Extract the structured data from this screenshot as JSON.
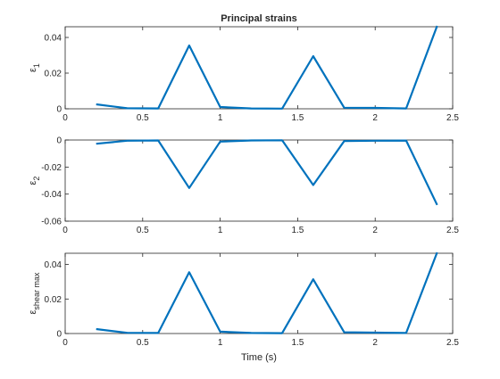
{
  "chart_data": [
    {
      "type": "line",
      "title": "Principal strains",
      "ylabel": "ε1",
      "ylabel_main": "ε",
      "ylabel_sub": "1",
      "xlabel": "",
      "xlim": [
        0,
        2.5
      ],
      "ylim": [
        0,
        0.046
      ],
      "xticks": [
        0,
        0.5,
        1,
        1.5,
        2,
        2.5
      ],
      "xtick_labels": [
        "0",
        "0.5",
        "1",
        "1.5",
        "2",
        "2.5"
      ],
      "yticks": [
        0,
        0.02,
        0.04
      ],
      "ytick_labels": [
        "0",
        "0.02",
        "0.04"
      ],
      "grid": false,
      "color": "#0072BD",
      "series": [
        {
          "x": [
            0.2,
            0.4,
            0.6,
            0.8,
            1.0,
            1.2,
            1.4,
            1.6,
            1.8,
            2.0,
            2.2,
            2.4
          ],
          "values": [
            0.0025,
            0.0003,
            0.0002,
            0.0355,
            0.001,
            0.0002,
            0.0001,
            0.0295,
            0.0006,
            0.0005,
            0.0002,
            0.0465
          ]
        }
      ]
    },
    {
      "type": "line",
      "title": "",
      "ylabel": "ε2",
      "ylabel_main": "ε",
      "ylabel_sub": "2",
      "xlabel": "",
      "xlim": [
        0,
        2.5
      ],
      "ylim": [
        -0.06,
        0
      ],
      "xticks": [
        0,
        0.5,
        1,
        1.5,
        2,
        2.5
      ],
      "xtick_labels": [
        "0",
        "0.5",
        "1",
        "1.5",
        "2",
        "2.5"
      ],
      "yticks": [
        0,
        -0.02,
        -0.04,
        -0.06
      ],
      "ytick_labels": [
        "0",
        "-0.02",
        "-0.04",
        "-0.06"
      ],
      "grid": false,
      "color": "#0072BD",
      "series": [
        {
          "x": [
            0.2,
            0.4,
            0.6,
            0.8,
            1.0,
            1.2,
            1.4,
            1.6,
            1.8,
            2.0,
            2.2,
            2.4
          ],
          "values": [
            -0.0028,
            -0.0005,
            -0.0003,
            -0.0355,
            -0.0012,
            -0.0003,
            -0.0002,
            -0.0333,
            -0.0008,
            -0.0005,
            -0.0004,
            -0.048
          ]
        }
      ]
    },
    {
      "type": "line",
      "title": "",
      "ylabel": "εshear max",
      "ylabel_main": "ε",
      "ylabel_sub": "shear max",
      "xlabel": "Time (s)",
      "xlim": [
        0,
        2.5
      ],
      "ylim": [
        0,
        0.0465
      ],
      "xticks": [
        0,
        0.5,
        1,
        1.5,
        2,
        2.5
      ],
      "xtick_labels": [
        "0",
        "0.5",
        "1",
        "1.5",
        "2",
        "2.5"
      ],
      "yticks": [
        0,
        0.02,
        0.04
      ],
      "ytick_labels": [
        "0",
        "0.02",
        "0.04"
      ],
      "grid": false,
      "color": "#0072BD",
      "series": [
        {
          "x": [
            0.2,
            0.4,
            0.6,
            0.8,
            1.0,
            1.2,
            1.4,
            1.6,
            1.8,
            2.0,
            2.2,
            2.4
          ],
          "values": [
            0.0026,
            0.0004,
            0.0003,
            0.0355,
            0.0011,
            0.0003,
            0.0002,
            0.0314,
            0.0007,
            0.0005,
            0.0003,
            0.047
          ]
        }
      ]
    }
  ]
}
